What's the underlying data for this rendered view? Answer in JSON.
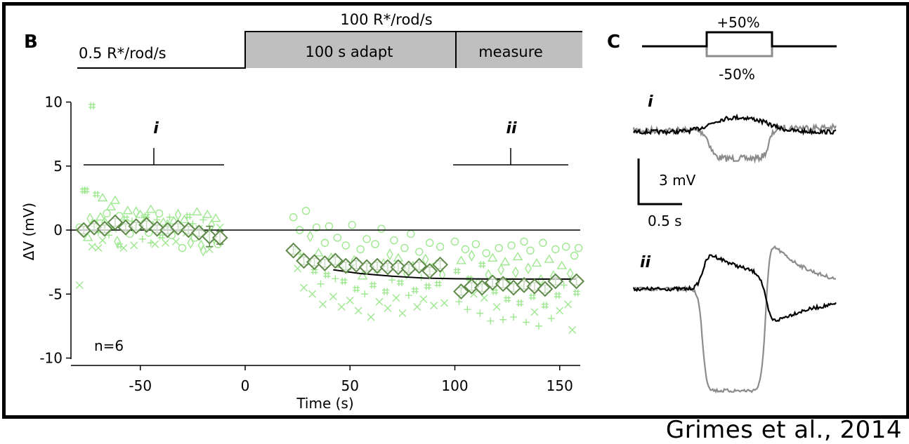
{
  "panel_b": {
    "label": "B",
    "protocol": {
      "baseline_label": "0.5 R*/rod/s",
      "step_label": "100 R*/rod/s",
      "adapt_label": "100 s adapt",
      "measure_label": "measure"
    },
    "window_i_label": "i",
    "window_ii_label": "ii",
    "n_label": "n=6"
  },
  "panel_c": {
    "label": "C",
    "contrast_up_label": "+50%",
    "contrast_down_label": "-50%",
    "trace_i_label": "i",
    "trace_ii_label": "ii",
    "scalebar_v_label": "3 mV",
    "scalebar_t_label": "0.5 s"
  },
  "colors": {
    "raw_points": "#9de88f",
    "mean_marker": "#5f8a4a",
    "trace_plus": "#000000",
    "trace_minus": "#8c8c8c",
    "step_fill": "#bfbfbf"
  },
  "citation": "Grimes et al., 2014",
  "chart_data": {
    "type": "scatter",
    "xlabel": "Time (s)",
    "ylabel": "ΔV (mV)",
    "xlim": [
      -83,
      160
    ],
    "ylim": [
      -10.5,
      10.5
    ],
    "x_ticks": [
      -50,
      0,
      50,
      100,
      150
    ],
    "y_ticks": [
      10,
      5,
      0,
      -5,
      -10
    ],
    "x_tick_labels": [
      "-50",
      "0",
      "50",
      "100",
      "150"
    ],
    "y_tick_labels": [
      "10",
      "5",
      "0",
      "-5",
      "-10"
    ],
    "zero_line": 0,
    "series": [
      {
        "kind": "mean",
        "marker": "diamond",
        "x": [
          -77,
          -72,
          -67,
          -62,
          -57,
          -52,
          -47,
          -42,
          -37,
          -32,
          -27,
          -22,
          -17,
          -12,
          23,
          28,
          33,
          38,
          43,
          48,
          53,
          58,
          63,
          68,
          73,
          78,
          83,
          88,
          93,
          103,
          108,
          113,
          118,
          123,
          128,
          133,
          138,
          143,
          148,
          158
        ],
        "y": [
          0,
          0.2,
          0.1,
          0.6,
          0.2,
          0.3,
          0.4,
          0.1,
          0,
          0.2,
          0,
          -0.2,
          -0.5,
          -0.6,
          -1.6,
          -2.4,
          -2.5,
          -2.6,
          -2.4,
          -2.8,
          -2.7,
          -2.9,
          -2.8,
          -2.9,
          -2.9,
          -3.0,
          -2.8,
          -3.2,
          -2.7,
          -4.8,
          -4.4,
          -4.5,
          -4.1,
          -4.2,
          -4.5,
          -4.3,
          -4.4,
          -4.6,
          -4.0,
          -4.0
        ],
        "errors": [
          0.3,
          0.3,
          0.3,
          0.3,
          0.3,
          0.3,
          0.3,
          0.3,
          0.3,
          0.3,
          0.3,
          0.3,
          0.8,
          0.5,
          0.3,
          0.3,
          0.3,
          0.3,
          0.3,
          0.3,
          0.3,
          0.3,
          0.3,
          0.3,
          0.3,
          0.3,
          0.3,
          0.3,
          0.3,
          0.3,
          0.3,
          0.3,
          0.3,
          0.3,
          0.3,
          0.3,
          0.3,
          0.3,
          0.3,
          0.3
        ]
      },
      {
        "kind": "fit",
        "x": [
          42,
          55,
          70,
          85,
          100,
          115,
          130,
          145,
          158
        ],
        "y": [
          -3.1,
          -3.4,
          -3.6,
          -3.75,
          -3.8,
          -3.82,
          -3.83,
          -3.83,
          -3.83
        ]
      }
    ],
    "raw_points": [
      [
        -79,
        0.2,
        "circle"
      ],
      [
        -77,
        -0.3,
        "plus"
      ],
      [
        -76,
        3.1,
        "hash"
      ],
      [
        -75,
        -0.6,
        "triangle"
      ],
      [
        -74,
        0.9,
        "diamond"
      ],
      [
        -73,
        -1.3,
        "x"
      ],
      [
        -72,
        0.5,
        "circle"
      ],
      [
        -71,
        2.8,
        "hash"
      ],
      [
        -70,
        -0.2,
        "plus"
      ],
      [
        -69,
        1.0,
        "triangle"
      ],
      [
        -68,
        -0.8,
        "x"
      ],
      [
        -67,
        0.6,
        "diamond"
      ],
      [
        -66,
        1.3,
        "circle"
      ],
      [
        -65,
        -0.4,
        "plus"
      ],
      [
        -64,
        1.8,
        "triangle"
      ],
      [
        -63,
        0.1,
        "x"
      ],
      [
        -62,
        2.3,
        "triangle"
      ],
      [
        -61,
        -0.9,
        "diamond"
      ],
      [
        -60,
        1.1,
        "circle"
      ],
      [
        -59,
        0.4,
        "plus"
      ],
      [
        -58,
        -1.4,
        "x"
      ],
      [
        -57,
        0.9,
        "hash"
      ],
      [
        -56,
        1.5,
        "triangle"
      ],
      [
        -55,
        -0.3,
        "circle"
      ],
      [
        -54,
        0.7,
        "plus"
      ],
      [
        -53,
        -1.2,
        "x"
      ],
      [
        -52,
        1.4,
        "diamond"
      ],
      [
        -51,
        0.2,
        "circle"
      ],
      [
        -50,
        1.2,
        "triangle"
      ],
      [
        -49,
        -0.7,
        "plus"
      ],
      [
        -48,
        0.9,
        "x"
      ],
      [
        -47,
        1.1,
        "hash"
      ],
      [
        -46,
        -0.2,
        "circle"
      ],
      [
        -45,
        1.6,
        "triangle"
      ],
      [
        -44,
        0.3,
        "diamond"
      ],
      [
        -43,
        -1.1,
        "x"
      ],
      [
        -42,
        0.8,
        "plus"
      ],
      [
        -41,
        1.3,
        "circle"
      ],
      [
        -40,
        -0.5,
        "hash"
      ],
      [
        -39,
        0.6,
        "triangle"
      ],
      [
        -38,
        -1.0,
        "x"
      ],
      [
        -37,
        0.4,
        "diamond"
      ],
      [
        -36,
        1.0,
        "plus"
      ],
      [
        -35,
        -0.4,
        "circle"
      ],
      [
        -34,
        0.7,
        "triangle"
      ],
      [
        -33,
        -0.9,
        "x"
      ],
      [
        -32,
        1.2,
        "diamond"
      ],
      [
        -31,
        0.3,
        "plus"
      ],
      [
        -30,
        -1.4,
        "circle"
      ],
      [
        -29,
        0.8,
        "triangle"
      ],
      [
        -28,
        -0.2,
        "x"
      ],
      [
        -27,
        1.1,
        "hash"
      ],
      [
        -26,
        -1.0,
        "diamond"
      ],
      [
        -25,
        0.5,
        "plus"
      ],
      [
        -24,
        -0.6,
        "circle"
      ],
      [
        -23,
        1.4,
        "triangle"
      ],
      [
        -22,
        0.1,
        "x"
      ],
      [
        -21,
        -1.2,
        "diamond"
      ],
      [
        -20,
        0.8,
        "plus"
      ],
      [
        -19,
        -0.3,
        "circle"
      ],
      [
        -18,
        1.2,
        "triangle"
      ],
      [
        -17,
        -1.5,
        "x"
      ],
      [
        -16,
        0.4,
        "diamond"
      ],
      [
        -15,
        -0.8,
        "plus"
      ],
      [
        -14,
        0.9,
        "triangle"
      ],
      [
        -13,
        -1.1,
        "circle"
      ],
      [
        -12,
        0.2,
        "x"
      ],
      [
        -79,
        -4.3,
        "x"
      ],
      [
        -77,
        3.1,
        "hash"
      ],
      [
        -73,
        9.7,
        "hash"
      ],
      [
        -70,
        -1.4,
        "x"
      ],
      [
        -68,
        2.5,
        "triangle"
      ],
      [
        -60,
        -1.2,
        "hash"
      ],
      [
        -45,
        -1.0,
        "plus"
      ],
      [
        -20,
        -1.6,
        "diamond"
      ],
      [
        23,
        1.0,
        "circle"
      ],
      [
        24,
        -1.5,
        "plus"
      ],
      [
        25,
        -3.0,
        "x"
      ],
      [
        26,
        0.0,
        "circle"
      ],
      [
        27,
        -2.0,
        "hash"
      ],
      [
        28,
        -4.5,
        "x"
      ],
      [
        29,
        1.5,
        "circle"
      ],
      [
        30,
        -2.5,
        "plus"
      ],
      [
        31,
        -0.5,
        "diamond"
      ],
      [
        32,
        -5.0,
        "x"
      ],
      [
        33,
        -3.2,
        "hash"
      ],
      [
        34,
        0.2,
        "circle"
      ],
      [
        35,
        -1.8,
        "triangle"
      ],
      [
        36,
        -4.2,
        "plus"
      ],
      [
        37,
        -5.8,
        "x"
      ],
      [
        38,
        -1.0,
        "circle"
      ],
      [
        39,
        -3.5,
        "hash"
      ],
      [
        40,
        0.3,
        "circle"
      ],
      [
        41,
        -2.2,
        "diamond"
      ],
      [
        42,
        -5.2,
        "x"
      ],
      [
        43,
        -3.8,
        "plus"
      ],
      [
        44,
        -0.6,
        "circle"
      ],
      [
        45,
        -2.7,
        "triangle"
      ],
      [
        46,
        -6.0,
        "x"
      ],
      [
        47,
        -4.0,
        "hash"
      ],
      [
        48,
        -1.2,
        "circle"
      ],
      [
        49,
        -3.1,
        "plus"
      ],
      [
        50,
        -5.5,
        "x"
      ],
      [
        51,
        0.4,
        "circle"
      ],
      [
        52,
        -2.4,
        "diamond"
      ],
      [
        53,
        -4.6,
        "hash"
      ],
      [
        54,
        -6.3,
        "x"
      ],
      [
        55,
        -1.5,
        "circle"
      ],
      [
        56,
        -3.6,
        "triangle"
      ],
      [
        57,
        -5.0,
        "plus"
      ],
      [
        58,
        -0.7,
        "circle"
      ],
      [
        59,
        -2.9,
        "diamond"
      ],
      [
        60,
        -6.8,
        "x"
      ],
      [
        61,
        -4.3,
        "hash"
      ],
      [
        62,
        -1.1,
        "circle"
      ],
      [
        63,
        -3.3,
        "plus"
      ],
      [
        64,
        -5.6,
        "x"
      ],
      [
        65,
        0.1,
        "circle"
      ],
      [
        66,
        -2.6,
        "triangle"
      ],
      [
        67,
        -4.8,
        "hash"
      ],
      [
        68,
        -6.1,
        "x"
      ],
      [
        69,
        -1.9,
        "diamond"
      ],
      [
        70,
        -3.9,
        "plus"
      ],
      [
        71,
        -0.8,
        "circle"
      ],
      [
        72,
        -5.3,
        "x"
      ],
      [
        73,
        -2.2,
        "triangle"
      ],
      [
        74,
        -4.1,
        "hash"
      ],
      [
        75,
        -6.5,
        "x"
      ],
      [
        76,
        -1.4,
        "circle"
      ],
      [
        77,
        -3.4,
        "diamond"
      ],
      [
        78,
        -5.1,
        "plus"
      ],
      [
        79,
        -0.3,
        "circle"
      ],
      [
        80,
        -2.8,
        "triangle"
      ],
      [
        81,
        -4.7,
        "hash"
      ],
      [
        82,
        -6.0,
        "x"
      ],
      [
        83,
        -1.7,
        "circle"
      ],
      [
        84,
        -3.7,
        "plus"
      ],
      [
        85,
        -5.4,
        "x"
      ],
      [
        86,
        -2.3,
        "diamond"
      ],
      [
        87,
        -4.4,
        "hash"
      ],
      [
        88,
        -1.0,
        "circle"
      ],
      [
        89,
        -3.0,
        "triangle"
      ],
      [
        90,
        -5.9,
        "x"
      ],
      [
        91,
        -2.6,
        "plus"
      ],
      [
        92,
        -4.2,
        "hash"
      ],
      [
        93,
        -1.3,
        "circle"
      ],
      [
        94,
        -3.5,
        "diamond"
      ],
      [
        95,
        -5.7,
        "x"
      ],
      [
        100,
        -0.9,
        "circle"
      ],
      [
        101,
        -3.2,
        "hash"
      ],
      [
        102,
        -5.6,
        "plus"
      ],
      [
        103,
        -2.4,
        "triangle"
      ],
      [
        104,
        -4.5,
        "x"
      ],
      [
        105,
        -1.5,
        "circle"
      ],
      [
        106,
        -6.2,
        "plus"
      ],
      [
        107,
        -3.8,
        "hash"
      ],
      [
        108,
        -2.0,
        "diamond"
      ],
      [
        109,
        -5.0,
        "x"
      ],
      [
        110,
        -1.1,
        "circle"
      ],
      [
        111,
        -4.1,
        "triangle"
      ],
      [
        112,
        -6.5,
        "plus"
      ],
      [
        113,
        -2.7,
        "hash"
      ],
      [
        114,
        -5.3,
        "x"
      ],
      [
        115,
        -1.8,
        "circle"
      ],
      [
        116,
        -3.5,
        "diamond"
      ],
      [
        117,
        -7.1,
        "plus"
      ],
      [
        118,
        -2.2,
        "triangle"
      ],
      [
        119,
        -4.8,
        "hash"
      ],
      [
        120,
        -6.0,
        "x"
      ],
      [
        121,
        -1.4,
        "circle"
      ],
      [
        122,
        -3.1,
        "diamond"
      ],
      [
        123,
        -7.0,
        "plus"
      ],
      [
        124,
        -2.5,
        "triangle"
      ],
      [
        125,
        -5.4,
        "hash"
      ],
      [
        126,
        -4.0,
        "x"
      ],
      [
        127,
        -1.2,
        "circle"
      ],
      [
        128,
        -6.8,
        "plus"
      ],
      [
        129,
        -3.3,
        "diamond"
      ],
      [
        130,
        -2.1,
        "triangle"
      ],
      [
        131,
        -5.7,
        "hash"
      ],
      [
        132,
        -4.4,
        "x"
      ],
      [
        133,
        -0.9,
        "circle"
      ],
      [
        134,
        -7.2,
        "plus"
      ],
      [
        135,
        -3.0,
        "diamond"
      ],
      [
        136,
        -1.6,
        "circle"
      ],
      [
        137,
        -5.2,
        "hash"
      ],
      [
        138,
        -6.4,
        "x"
      ],
      [
        139,
        -2.6,
        "triangle"
      ],
      [
        140,
        -7.5,
        "plus"
      ],
      [
        141,
        -3.9,
        "diamond"
      ],
      [
        142,
        -1.0,
        "circle"
      ],
      [
        143,
        -5.9,
        "hash"
      ],
      [
        144,
        -4.6,
        "x"
      ],
      [
        145,
        -2.3,
        "triangle"
      ],
      [
        146,
        -6.9,
        "plus"
      ],
      [
        147,
        -3.6,
        "diamond"
      ],
      [
        148,
        -1.5,
        "circle"
      ],
      [
        149,
        -5.1,
        "hash"
      ],
      [
        150,
        -6.3,
        "x"
      ],
      [
        151,
        -2.8,
        "triangle"
      ],
      [
        152,
        -4.3,
        "plus"
      ],
      [
        153,
        -1.3,
        "circle"
      ],
      [
        154,
        -5.8,
        "x"
      ],
      [
        155,
        -3.4,
        "diamond"
      ],
      [
        156,
        -7.8,
        "x"
      ],
      [
        157,
        -2.0,
        "circle"
      ],
      [
        158,
        -4.9,
        "hash"
      ],
      [
        159,
        -1.4,
        "circle"
      ]
    ]
  }
}
